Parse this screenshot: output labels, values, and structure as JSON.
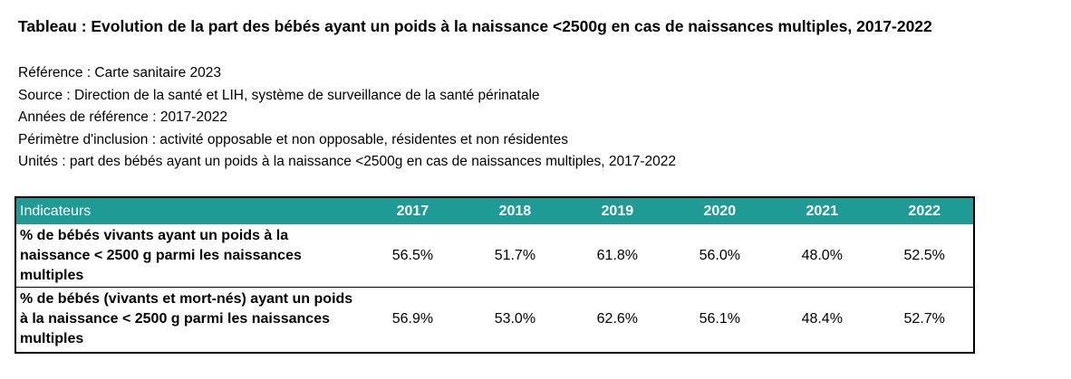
{
  "title": "Tableau : Evolution de la part des bébés ayant un poids à la naissance <2500g en cas de naissances multiples, 2017-2022",
  "meta": {
    "reference": "Référence : Carte sanitaire 2023",
    "source": "Source : Direction de la santé et LIH, système de surveillance de la santé périnatale",
    "years": "Années de référence : 2017-2022",
    "scope": "Périmètre d'inclusion : activité opposable et non opposable, résidentes et non résidentes",
    "units": "Unités : part des bébés ayant un poids à la naissance <2500g en cas de naissances multiples, 2017-2022"
  },
  "table": {
    "header_label": "Indicateurs",
    "years": [
      "2017",
      "2018",
      "2019",
      "2020",
      "2021",
      "2022"
    ],
    "rows": [
      {
        "label": "% de bébés vivants ayant un poids à la naissance    < 2500 g parmi les naissances multiples",
        "values": [
          "56.5%",
          "51.7%",
          "61.8%",
          "56.0%",
          "48.0%",
          "52.5%"
        ]
      },
      {
        "label": "% de bébés (vivants et mort-nés) ayant un poids à la naissance < 2500 g parmi les naissances multiples",
        "values": [
          "56.9%",
          "53.0%",
          "62.6%",
          "56.1%",
          "48.4%",
          "52.7%"
        ]
      }
    ]
  },
  "colors": {
    "header_bg": "#1f9b96",
    "header_text": "#ffffff"
  }
}
